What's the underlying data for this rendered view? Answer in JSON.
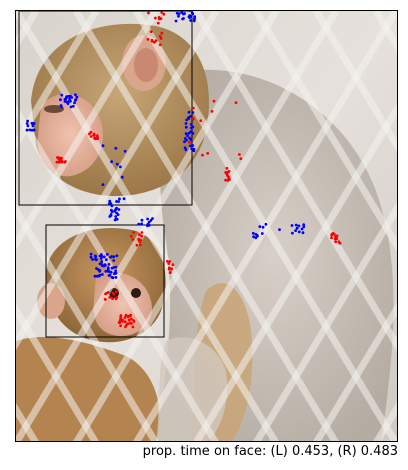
{
  "caption": "prop. time on face: (L) 0.453, (R) 0.483",
  "colors": {
    "left_eye_gaze": "#0000ff",
    "right_eye_gaze": "#ff0000",
    "face_box": "#000000",
    "frame": "#000000"
  },
  "scene": {
    "description_icon": "monkey-photo-icon"
  }
}
